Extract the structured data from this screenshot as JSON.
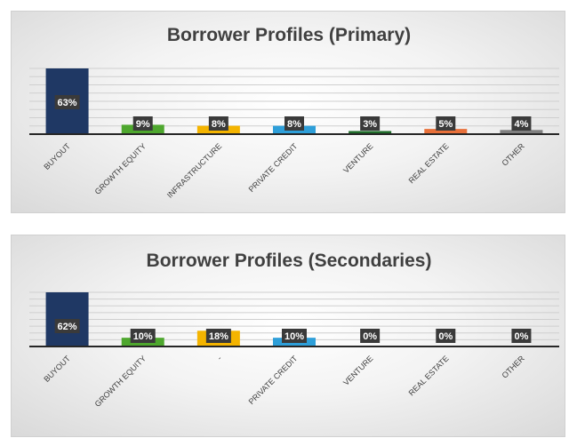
{
  "chart_data": [
    {
      "type": "bar",
      "title": "Borrower Profiles (Primary)",
      "categories": [
        "BUYOUT",
        "GROWTH EQUITY",
        "INFRASTRUCTURE",
        "PRIVATE CREDIT",
        "VENTURE",
        "REAL ESTATE",
        "OTHER"
      ],
      "values": [
        63,
        9,
        8,
        8,
        3,
        5,
        4
      ],
      "data_labels": [
        "63%",
        "9%",
        "8%",
        "8%",
        "3%",
        "5%",
        "4%"
      ],
      "colors": [
        "#1f3864",
        "#4ea72e",
        "#f4b400",
        "#2e9fd9",
        "#1f6b2a",
        "#e8703a",
        "#7f7f7f"
      ],
      "ylim": [
        0,
        63
      ],
      "grid": true,
      "legend": "none"
    },
    {
      "type": "bar",
      "title": "Borrower Profiles (Secondaries)",
      "categories": [
        "BUYOUT",
        "GROWTH EQUITY",
        "-",
        "PRIVATE CREDIT",
        "VENTURE",
        "REAL ESTATE",
        "OTHER"
      ],
      "values": [
        62,
        10,
        18,
        10,
        0,
        0,
        0
      ],
      "data_labels": [
        "62%",
        "10%",
        "18%",
        "10%",
        "0%",
        "0%",
        "0%"
      ],
      "colors": [
        "#1f3864",
        "#4ea72e",
        "#f4b400",
        "#2e9fd9",
        "#1f6b2a",
        "#e8703a",
        "#7f7f7f"
      ],
      "ylim": [
        0,
        62
      ],
      "grid": true,
      "legend": "none"
    }
  ]
}
